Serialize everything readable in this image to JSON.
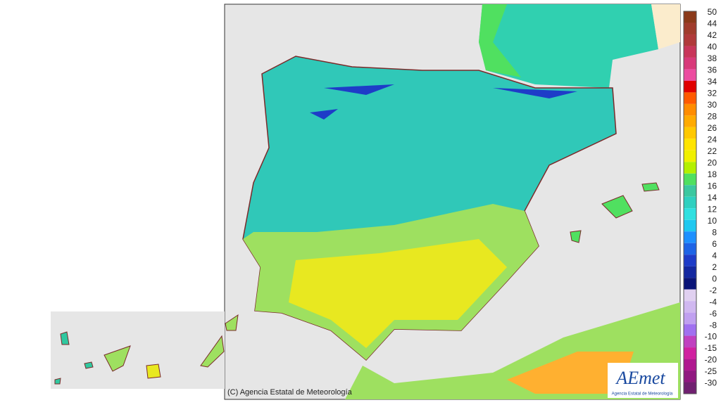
{
  "legend": {
    "values": [
      50,
      44,
      42,
      40,
      38,
      36,
      34,
      32,
      30,
      28,
      26,
      24,
      22,
      20,
      18,
      16,
      14,
      12,
      10,
      8,
      6,
      4,
      2,
      0,
      -2,
      -4,
      -6,
      -8,
      -10,
      -15,
      -20,
      -25,
      -30
    ],
    "colors": [
      "#8b3a1a",
      "#a03c2c",
      "#b03a3a",
      "#c8365a",
      "#d83a7a",
      "#ec4ca0",
      "#e00000",
      "#ff5a00",
      "#ff8c00",
      "#ffaa00",
      "#ffc800",
      "#ffe400",
      "#f0f000",
      "#b4f000",
      "#50e060",
      "#3cc8a0",
      "#30d0c0",
      "#30e0e0",
      "#20c8f0",
      "#1e90ff",
      "#1e64e6",
      "#1e3cc8",
      "#1428a0",
      "#0a1478",
      "#e0d0f0",
      "#d0b8f0",
      "#c0a0f0",
      "#a070f0",
      "#c040c0",
      "#d020a0",
      "#b01890",
      "#901880",
      "#702070"
    ]
  },
  "footer": {
    "copyright": "(C) Agencia Estatal de Meteorología"
  },
  "logo": {
    "name": "AEmet",
    "subtitle": "Agencia Estatal de Meteorología"
  }
}
